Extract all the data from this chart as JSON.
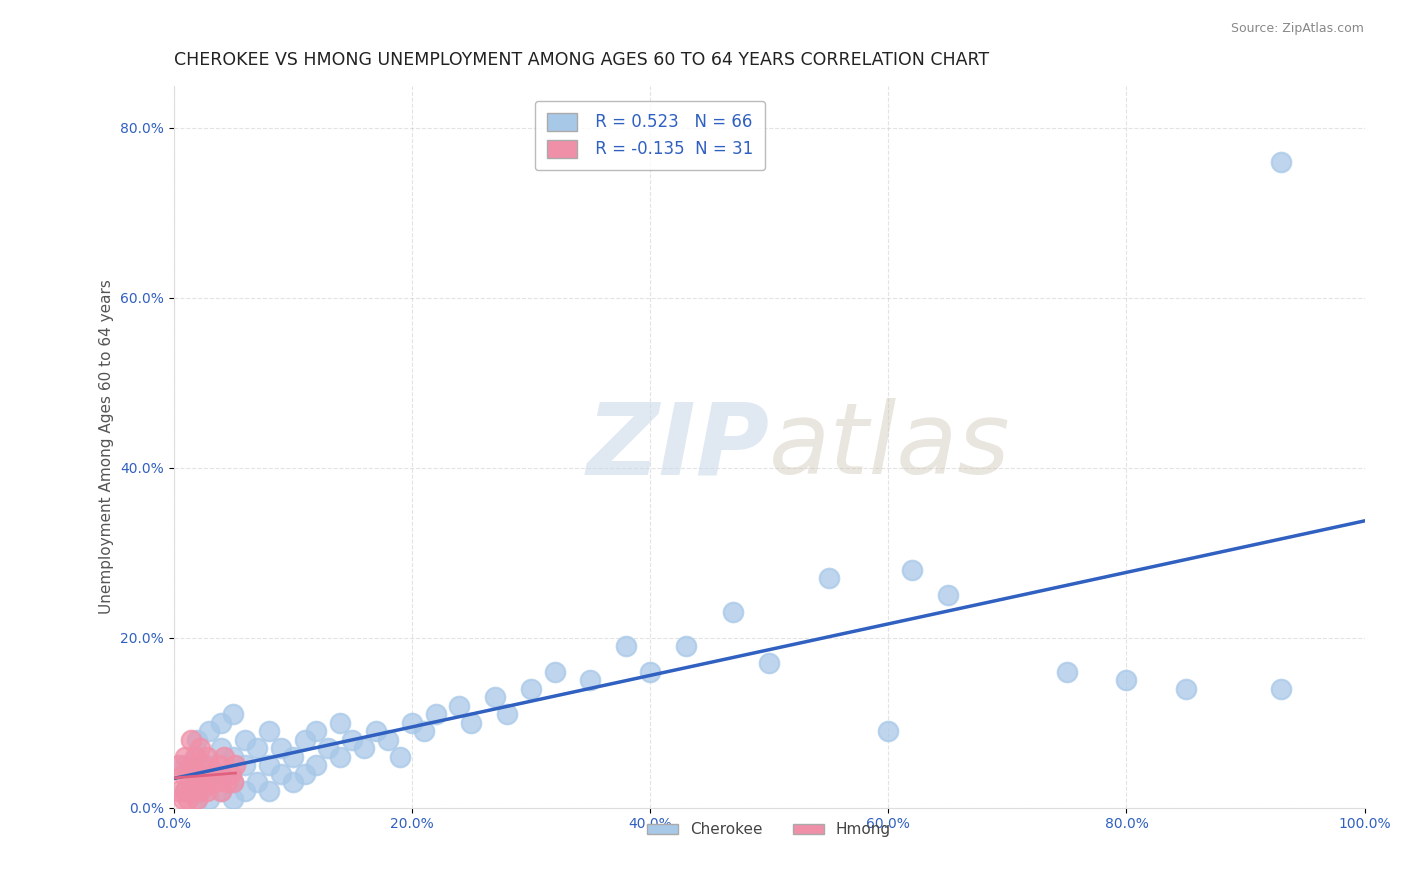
{
  "title": "CHEROKEE VS HMONG UNEMPLOYMENT AMONG AGES 60 TO 64 YEARS CORRELATION CHART",
  "source": "Source: ZipAtlas.com",
  "ylabel": "Unemployment Among Ages 60 to 64 years",
  "xlabel": "",
  "xlim": [
    0,
    1.0
  ],
  "ylim": [
    0,
    0.85
  ],
  "xticks": [
    0.0,
    0.2,
    0.4,
    0.6,
    0.8,
    1.0
  ],
  "xticklabels": [
    "0.0%",
    "20.0%",
    "40.0%",
    "60.0%",
    "80.0%",
    "100.0%"
  ],
  "yticks": [
    0.0,
    0.2,
    0.4,
    0.6,
    0.8
  ],
  "yticklabels": [
    "0.0%",
    "20.0%",
    "40.0%",
    "60.0%",
    "80.0%"
  ],
  "cherokee_R": 0.523,
  "cherokee_N": 66,
  "hmong_R": -0.135,
  "hmong_N": 31,
  "cherokee_color": "#a8c8e8",
  "hmong_color": "#f090a8",
  "cherokee_line_color": "#3060c0",
  "hmong_line_color": "#e06080",
  "watermark_zip": "ZIP",
  "watermark_atlas": "atlas",
  "background_color": "#ffffff",
  "title_fontsize": 12.5,
  "axis_label_fontsize": 11,
  "tick_fontsize": 10,
  "cherokee_x": [
    0.01,
    0.01,
    0.02,
    0.02,
    0.02,
    0.02,
    0.03,
    0.03,
    0.03,
    0.03,
    0.04,
    0.04,
    0.04,
    0.04,
    0.05,
    0.05,
    0.05,
    0.05,
    0.06,
    0.06,
    0.06,
    0.07,
    0.07,
    0.08,
    0.08,
    0.08,
    0.09,
    0.09,
    0.1,
    0.1,
    0.11,
    0.11,
    0.12,
    0.12,
    0.13,
    0.14,
    0.14,
    0.15,
    0.16,
    0.17,
    0.18,
    0.19,
    0.2,
    0.21,
    0.22,
    0.24,
    0.25,
    0.27,
    0.28,
    0.3,
    0.32,
    0.35,
    0.38,
    0.4,
    0.43,
    0.47,
    0.5,
    0.55,
    0.6,
    0.62,
    0.65,
    0.75,
    0.8,
    0.85,
    0.93,
    0.93
  ],
  "cherokee_y": [
    0.02,
    0.05,
    0.01,
    0.03,
    0.06,
    0.08,
    0.01,
    0.03,
    0.05,
    0.09,
    0.02,
    0.04,
    0.07,
    0.1,
    0.01,
    0.03,
    0.06,
    0.11,
    0.02,
    0.05,
    0.08,
    0.03,
    0.07,
    0.02,
    0.05,
    0.09,
    0.04,
    0.07,
    0.03,
    0.06,
    0.04,
    0.08,
    0.05,
    0.09,
    0.07,
    0.06,
    0.1,
    0.08,
    0.07,
    0.09,
    0.08,
    0.06,
    0.1,
    0.09,
    0.11,
    0.12,
    0.1,
    0.13,
    0.11,
    0.14,
    0.16,
    0.15,
    0.19,
    0.16,
    0.19,
    0.23,
    0.17,
    0.27,
    0.09,
    0.28,
    0.25,
    0.16,
    0.15,
    0.14,
    0.76,
    0.14
  ],
  "hmong_x": [
    0.005,
    0.005,
    0.008,
    0.008,
    0.01,
    0.01,
    0.012,
    0.012,
    0.015,
    0.015,
    0.015,
    0.018,
    0.018,
    0.02,
    0.02,
    0.022,
    0.022,
    0.025,
    0.025,
    0.028,
    0.028,
    0.03,
    0.032,
    0.035,
    0.038,
    0.04,
    0.042,
    0.045,
    0.048,
    0.05,
    0.052
  ],
  "hmong_y": [
    0.02,
    0.05,
    0.01,
    0.04,
    0.02,
    0.06,
    0.01,
    0.04,
    0.02,
    0.05,
    0.08,
    0.03,
    0.06,
    0.01,
    0.04,
    0.02,
    0.07,
    0.03,
    0.05,
    0.02,
    0.06,
    0.03,
    0.04,
    0.03,
    0.05,
    0.02,
    0.06,
    0.03,
    0.04,
    0.03,
    0.05
  ]
}
